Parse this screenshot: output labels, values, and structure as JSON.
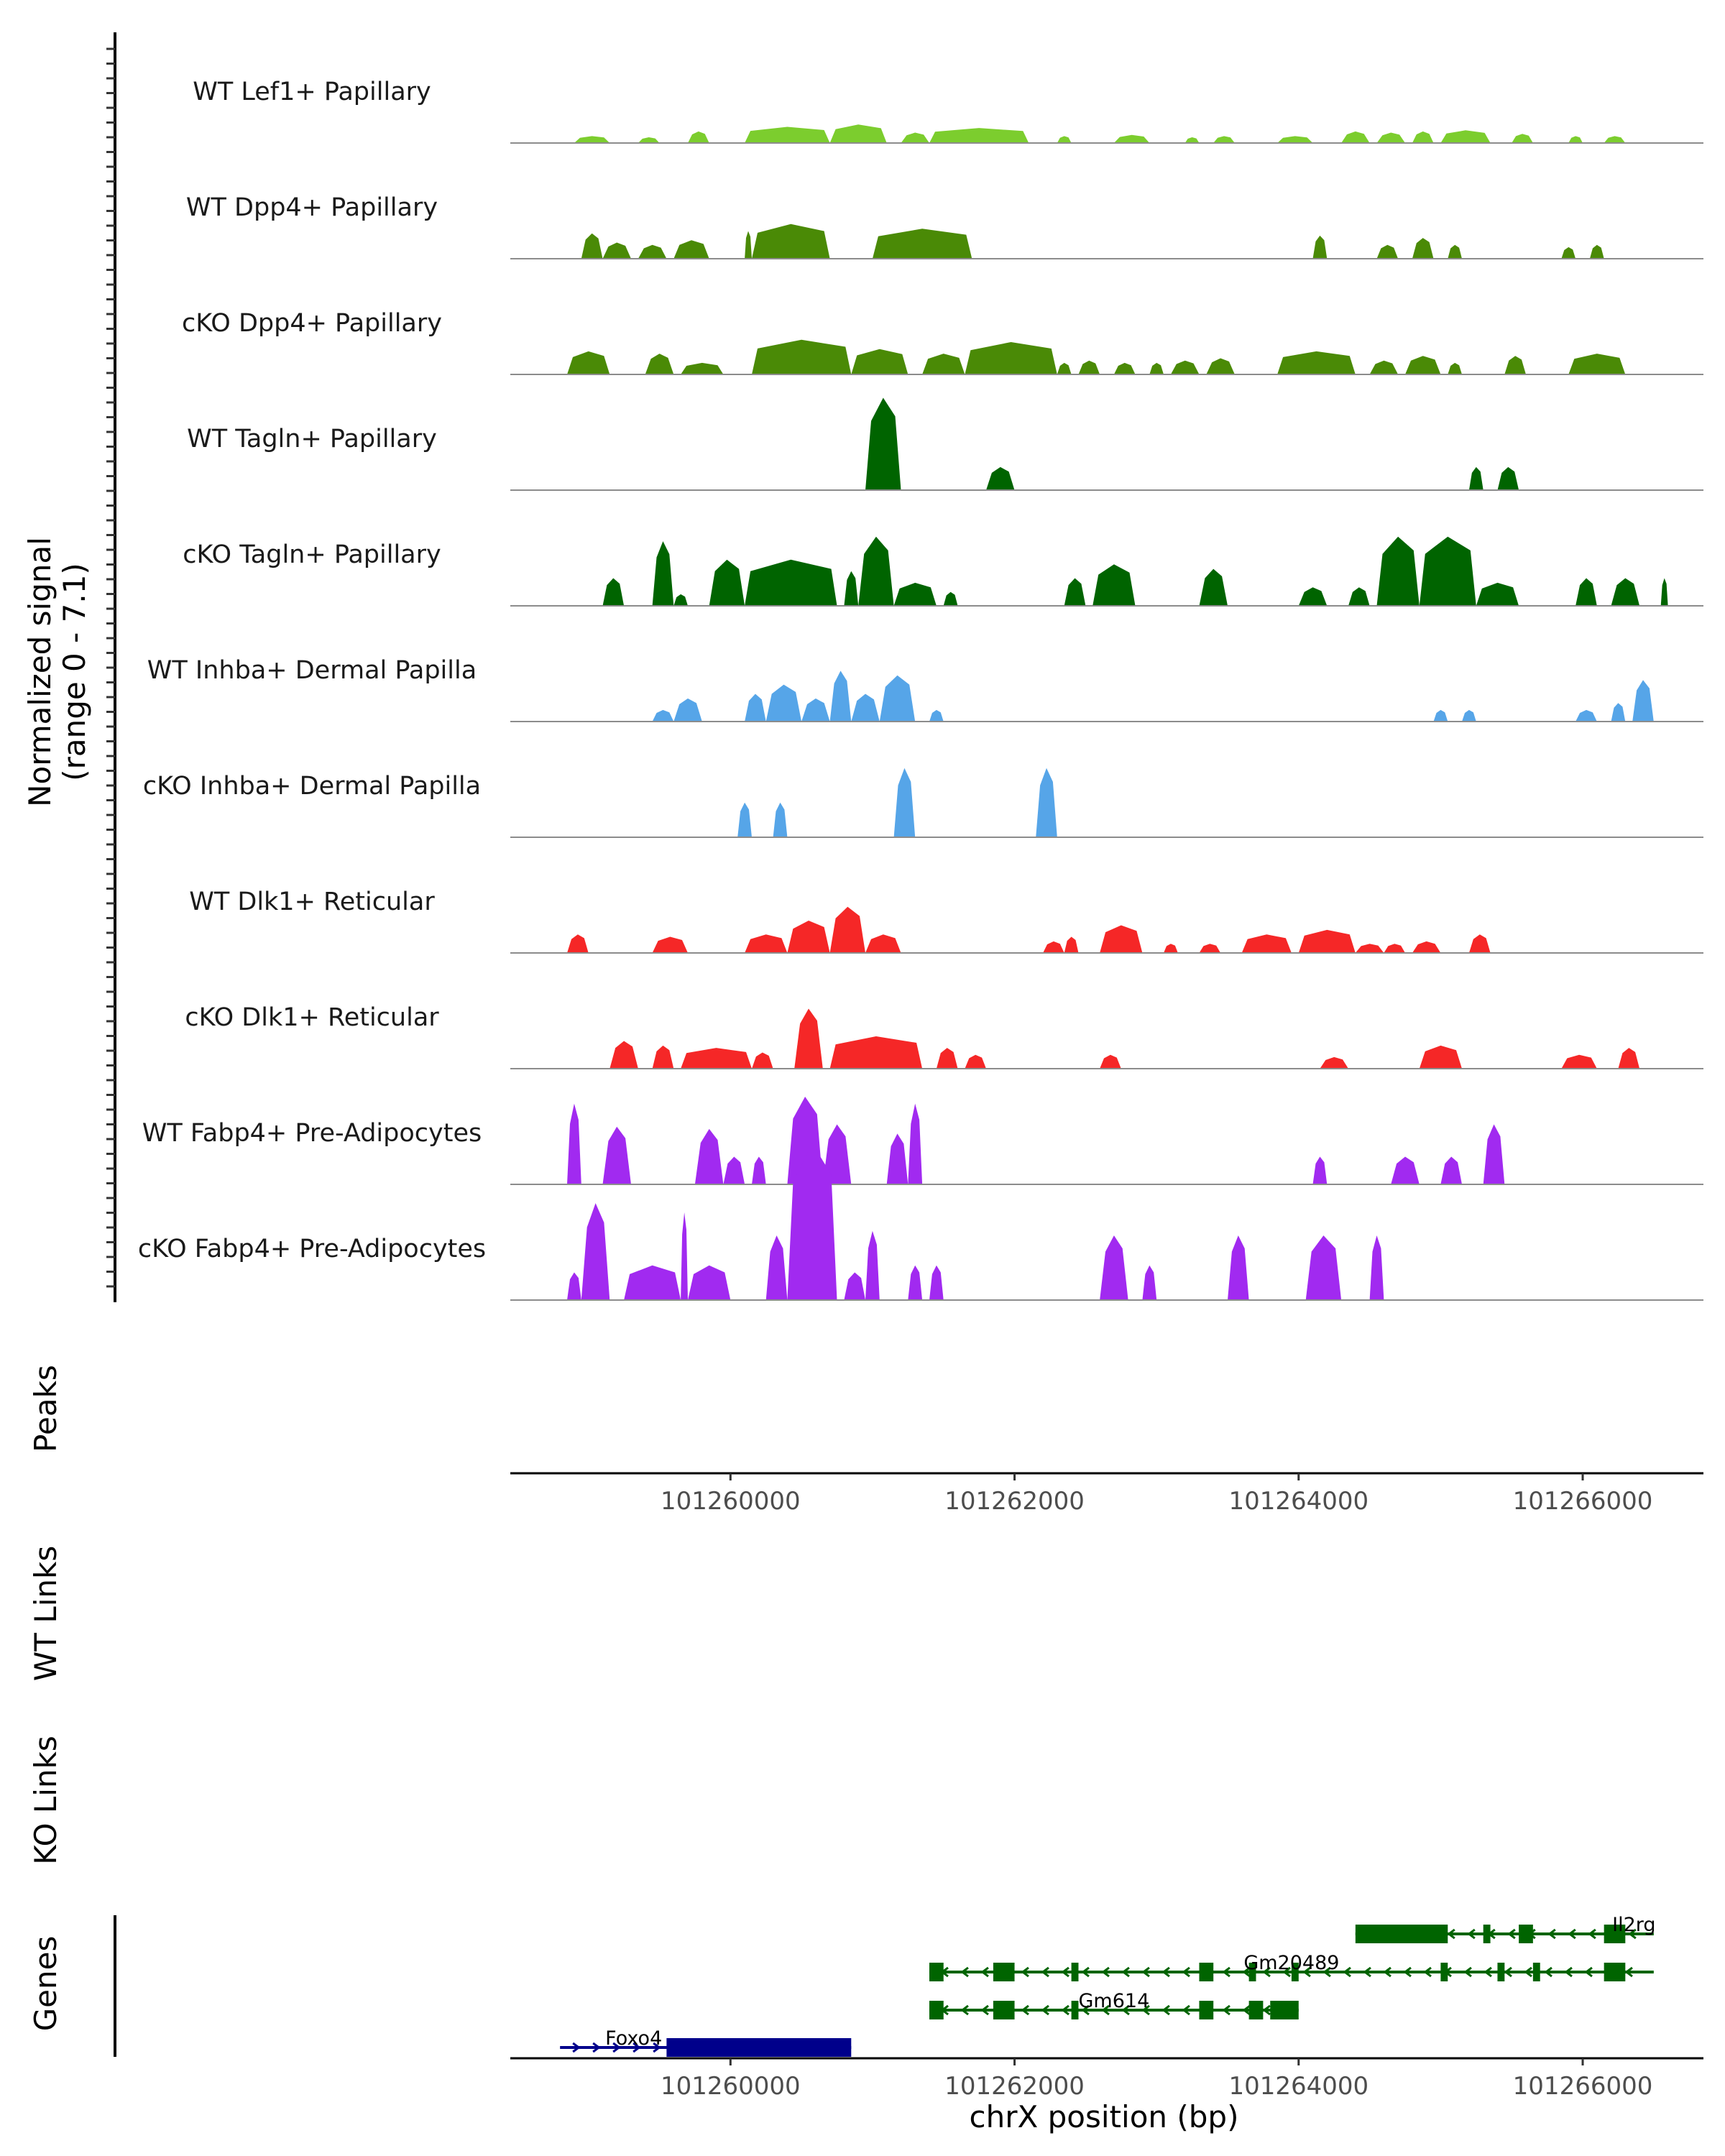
{
  "chart_data": {
    "type": "area",
    "title": "",
    "xlabel": "chrX position (bp)",
    "ylabel": "Normalized signal\n(range 0 - 7.1)",
    "ylabel_lines": [
      "Normalized signal",
      "(range 0 - 7.1)"
    ],
    "ylim": [
      0,
      7.1
    ],
    "xlim": [
      101258450,
      101266850
    ],
    "x_ticks": [
      101260000,
      101262000,
      101264000,
      101266000
    ],
    "x_tick_labels": [
      "101260000",
      "101262000",
      "101264000",
      "101266000"
    ],
    "tracks": [
      {
        "name": "WT Lef1+ Papillary",
        "color": "#7CCD2E",
        "peaks": [
          [
            101258900,
            101259150,
            0.3
          ],
          [
            101259350,
            101259500,
            0.25
          ],
          [
            101259700,
            101259850,
            0.5
          ],
          [
            101260100,
            101260700,
            0.7
          ],
          [
            101260700,
            101261100,
            0.8
          ],
          [
            101261200,
            101261400,
            0.45
          ],
          [
            101261400,
            101262100,
            0.65
          ],
          [
            101262300,
            101262400,
            0.3
          ],
          [
            101262700,
            101262950,
            0.35
          ],
          [
            101263200,
            101263300,
            0.25
          ],
          [
            101263400,
            101263550,
            0.3
          ],
          [
            101263850,
            101264100,
            0.3
          ],
          [
            101264300,
            101264500,
            0.5
          ],
          [
            101264550,
            101264750,
            0.45
          ],
          [
            101264800,
            101264950,
            0.5
          ],
          [
            101265000,
            101265350,
            0.55
          ],
          [
            101265500,
            101265650,
            0.4
          ],
          [
            101265900,
            101266000,
            0.3
          ],
          [
            101266150,
            101266300,
            0.3
          ]
        ]
      },
      {
        "name": "WT Dpp4+ Papillary",
        "color": "#4A8A06",
        "peaks": [
          [
            101258950,
            101259100,
            1.1
          ],
          [
            101259100,
            101259300,
            0.7
          ],
          [
            101259350,
            101259550,
            0.6
          ],
          [
            101259600,
            101259850,
            0.8
          ],
          [
            101260100,
            101260150,
            1.2
          ],
          [
            101260150,
            101260700,
            1.5
          ],
          [
            101261000,
            101261700,
            1.3
          ],
          [
            101264100,
            101264200,
            1.0
          ],
          [
            101264550,
            101264700,
            0.6
          ],
          [
            101264800,
            101264950,
            0.9
          ],
          [
            101265050,
            101265150,
            0.6
          ],
          [
            101265850,
            101265950,
            0.5
          ],
          [
            101266050,
            101266150,
            0.6
          ]
        ]
      },
      {
        "name": "cKO Dpp4+ Papillary",
        "color": "#4A8A06",
        "peaks": [
          [
            101258850,
            101259150,
            1.0
          ],
          [
            101259400,
            101259600,
            0.9
          ],
          [
            101259650,
            101259950,
            0.5
          ],
          [
            101260150,
            101260850,
            1.5
          ],
          [
            101260850,
            101261250,
            1.1
          ],
          [
            101261350,
            101261650,
            0.9
          ],
          [
            101261650,
            101262300,
            1.4
          ],
          [
            101262300,
            101262400,
            0.5
          ],
          [
            101262450,
            101262600,
            0.6
          ],
          [
            101262700,
            101262850,
            0.5
          ],
          [
            101262950,
            101263050,
            0.5
          ],
          [
            101263100,
            101263300,
            0.6
          ],
          [
            101263350,
            101263550,
            0.7
          ],
          [
            101263850,
            101264400,
            1.0
          ],
          [
            101264500,
            101264700,
            0.6
          ],
          [
            101264750,
            101265000,
            0.8
          ],
          [
            101265050,
            101265150,
            0.5
          ],
          [
            101265450,
            101265600,
            0.8
          ],
          [
            101265900,
            101266300,
            0.9
          ]
        ]
      },
      {
        "name": "WT Tagln+ Papillary",
        "color": "#006400",
        "peaks": [
          [
            101260950,
            101261200,
            4.0
          ],
          [
            101261800,
            101262000,
            1.0
          ],
          [
            101265200,
            101265300,
            1.0
          ],
          [
            101265400,
            101265550,
            1.0
          ]
        ]
      },
      {
        "name": "cKO Tagln+ Papillary",
        "color": "#006400",
        "peaks": [
          [
            101259100,
            101259250,
            1.2
          ],
          [
            101259450,
            101259600,
            2.8
          ],
          [
            101259600,
            101259700,
            0.5
          ],
          [
            101259850,
            101260100,
            2.0
          ],
          [
            101260100,
            101260750,
            2.0
          ],
          [
            101260800,
            101260900,
            1.5
          ],
          [
            101260900,
            101261150,
            3.0
          ],
          [
            101261150,
            101261450,
            1.0
          ],
          [
            101261500,
            101261600,
            0.6
          ],
          [
            101262350,
            101262500,
            1.2
          ],
          [
            101262550,
            101262850,
            1.8
          ],
          [
            101263300,
            101263500,
            1.6
          ],
          [
            101264000,
            101264200,
            0.8
          ],
          [
            101264350,
            101264500,
            0.8
          ],
          [
            101264550,
            101264850,
            3.0
          ],
          [
            101264850,
            101265250,
            3.0
          ],
          [
            101265250,
            101265550,
            1.0
          ],
          [
            101265950,
            101266100,
            1.2
          ],
          [
            101266200,
            101266400,
            1.2
          ],
          [
            101266550,
            101266600,
            1.2
          ]
        ]
      },
      {
        "name": "WT Inhba+ Dermal Papilla",
        "color": "#56A5E8",
        "peaks": [
          [
            101259450,
            101259600,
            0.5
          ],
          [
            101259600,
            101259800,
            1.0
          ],
          [
            101260100,
            101260250,
            1.2
          ],
          [
            101260250,
            101260500,
            1.6
          ],
          [
            101260500,
            101260700,
            1.0
          ],
          [
            101260700,
            101260850,
            2.2
          ],
          [
            101260850,
            101261050,
            1.2
          ],
          [
            101261050,
            101261300,
            2.0
          ],
          [
            101261400,
            101261500,
            0.5
          ],
          [
            101264950,
            101265050,
            0.5
          ],
          [
            101265150,
            101265250,
            0.5
          ],
          [
            101265950,
            101266100,
            0.5
          ],
          [
            101266200,
            101266300,
            0.8
          ],
          [
            101266350,
            101266500,
            1.8
          ]
        ]
      },
      {
        "name": "cKO Inhba+ Dermal Papilla",
        "color": "#56A5E8",
        "peaks": [
          [
            101260050,
            101260150,
            1.5
          ],
          [
            101260300,
            101260400,
            1.5
          ],
          [
            101261150,
            101261300,
            3.0
          ],
          [
            101262150,
            101262300,
            3.0
          ]
        ]
      },
      {
        "name": "WT Dlk1+ Reticular",
        "color": "#F52727",
        "peaks": [
          [
            101258850,
            101259000,
            0.8
          ],
          [
            101259450,
            101259700,
            0.7
          ],
          [
            101260100,
            101260400,
            0.8
          ],
          [
            101260400,
            101260700,
            1.4
          ],
          [
            101260700,
            101260950,
            2.0
          ],
          [
            101260950,
            101261200,
            0.8
          ],
          [
            101262200,
            101262350,
            0.5
          ],
          [
            101262350,
            101262450,
            0.7
          ],
          [
            101262600,
            101262900,
            1.2
          ],
          [
            101263050,
            101263150,
            0.4
          ],
          [
            101263300,
            101263450,
            0.4
          ],
          [
            101263600,
            101263950,
            0.8
          ],
          [
            101264000,
            101264400,
            1.0
          ],
          [
            101264400,
            101264600,
            0.4
          ],
          [
            101264600,
            101264750,
            0.4
          ],
          [
            101264800,
            101265000,
            0.5
          ],
          [
            101265200,
            101265350,
            0.8
          ]
        ]
      },
      {
        "name": "cKO Dlk1+ Reticular",
        "color": "#F52727",
        "peaks": [
          [
            101259150,
            101259350,
            1.2
          ],
          [
            101259450,
            101259600,
            1.0
          ],
          [
            101259650,
            101260150,
            0.9
          ],
          [
            101260150,
            101260300,
            0.7
          ],
          [
            101260450,
            101260650,
            2.6
          ],
          [
            101260700,
            101261350,
            1.4
          ],
          [
            101261450,
            101261600,
            0.9
          ],
          [
            101261650,
            101261800,
            0.6
          ],
          [
            101262600,
            101262750,
            0.6
          ],
          [
            101264150,
            101264350,
            0.5
          ],
          [
            101264850,
            101265150,
            1.0
          ],
          [
            101265850,
            101266100,
            0.6
          ],
          [
            101266250,
            101266400,
            0.9
          ]
        ]
      },
      {
        "name": "WT Fabp4+ Pre-Adipocytes",
        "color": "#A12AF0",
        "peaks": [
          [
            101258850,
            101258950,
            3.5
          ],
          [
            101259100,
            101259300,
            2.5
          ],
          [
            101259750,
            101259950,
            2.4
          ],
          [
            101259950,
            101260100,
            1.2
          ],
          [
            101260150,
            101260250,
            1.2
          ],
          [
            101260400,
            101260650,
            3.8
          ],
          [
            101260650,
            101260850,
            2.6
          ],
          [
            101261100,
            101261250,
            2.2
          ],
          [
            101261250,
            101261350,
            3.5
          ],
          [
            101264100,
            101264200,
            1.2
          ],
          [
            101264650,
            101264850,
            1.2
          ],
          [
            101265000,
            101265150,
            1.2
          ],
          [
            101265300,
            101265450,
            2.6
          ]
        ]
      },
      {
        "name": "cKO Fabp4+ Pre-Adipocytes",
        "color": "#A12AF0",
        "peaks": [
          [
            101258850,
            101258950,
            1.2
          ],
          [
            101258950,
            101259150,
            4.2
          ],
          [
            101259250,
            101259650,
            1.5
          ],
          [
            101259650,
            101259700,
            3.8
          ],
          [
            101259700,
            101260000,
            1.5
          ],
          [
            101260250,
            101260400,
            2.8
          ],
          [
            101260400,
            101260750,
            6.8
          ],
          [
            101260800,
            101260950,
            1.2
          ],
          [
            101260950,
            101261050,
            3.0
          ],
          [
            101261250,
            101261350,
            1.5
          ],
          [
            101261400,
            101261500,
            1.5
          ],
          [
            101262600,
            101262800,
            2.8
          ],
          [
            101262900,
            101263000,
            1.5
          ],
          [
            101263500,
            101263650,
            2.8
          ],
          [
            101264050,
            101264300,
            2.8
          ],
          [
            101264500,
            101264600,
            2.8
          ]
        ]
      }
    ],
    "extra_track_labels": [
      "Peaks",
      "WT Links",
      "KO Links",
      "Genes"
    ],
    "genes": [
      {
        "name": "Il2rg",
        "color": "#006400",
        "strand": "-",
        "start": 101264400,
        "end": 101266500,
        "exons": [
          [
            101264400,
            101265050
          ],
          [
            101265300,
            101265350
          ],
          [
            101265550,
            101265650
          ],
          [
            101266150,
            101266300
          ]
        ]
      },
      {
        "name": "Gm20489",
        "color": "#006400",
        "strand": "-",
        "start": 101261400,
        "end": 101266500,
        "exons": [
          [
            101261400,
            101261500
          ],
          [
            101261850,
            101262000
          ],
          [
            101262400,
            101262450
          ],
          [
            101263300,
            101263400
          ],
          [
            101263650,
            101263700
          ],
          [
            101263950,
            101264000
          ],
          [
            101265000,
            101265050
          ],
          [
            101265400,
            101265450
          ],
          [
            101265650,
            101265700
          ],
          [
            101266150,
            101266300
          ]
        ]
      },
      {
        "name": "Gm614",
        "color": "#006400",
        "strand": "-",
        "start": 101261400,
        "end": 101264000,
        "exons": [
          [
            101261400,
            101261500
          ],
          [
            101261850,
            101262000
          ],
          [
            101262400,
            101262450
          ],
          [
            101263300,
            101263400
          ],
          [
            101263650,
            101263750
          ],
          [
            101263800,
            101264000
          ]
        ]
      },
      {
        "name": "Foxo4",
        "color": "#00008B",
        "strand": "+",
        "start": 101258800,
        "end": 101260850,
        "exons": [
          [
            101259550,
            101260850
          ]
        ]
      }
    ]
  }
}
